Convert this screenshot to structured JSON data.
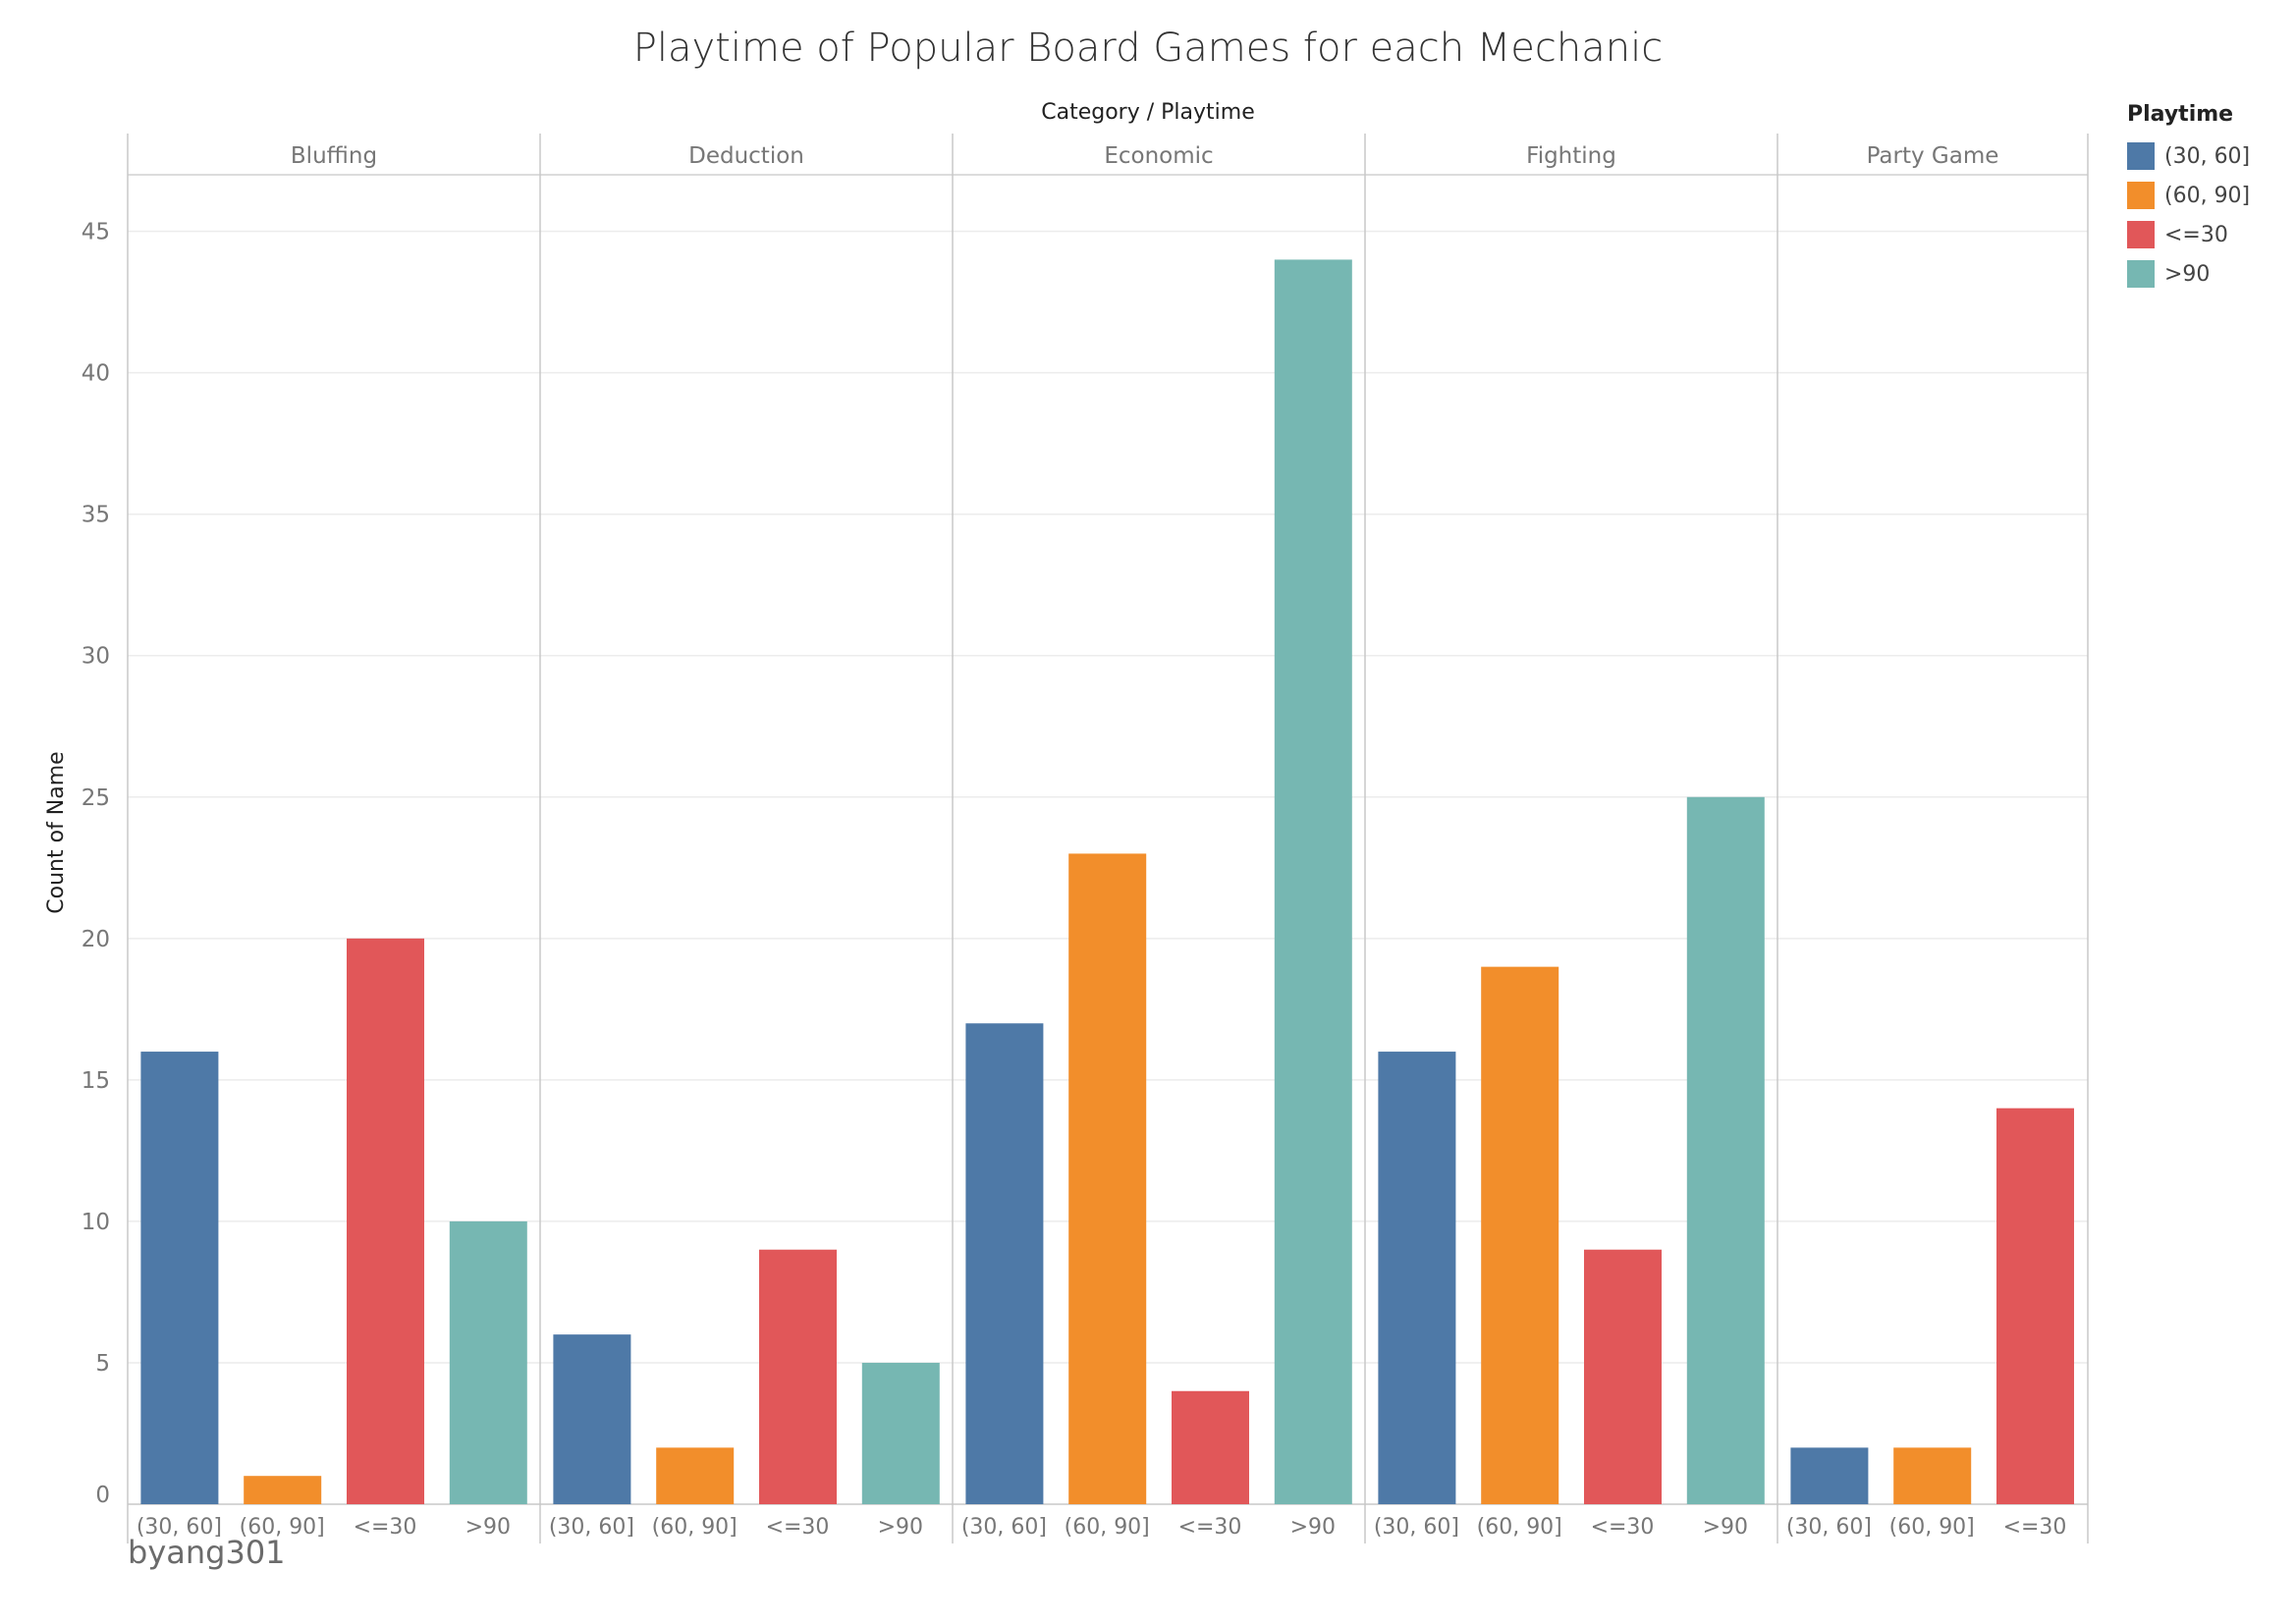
{
  "title": "Playtime of Popular Board Games for each Mechanic",
  "column_header": "Category / Playtime",
  "watermark": "byang301",
  "legend": {
    "title": "Playtime",
    "items": [
      {
        "label": "(30, 60]",
        "color": "#4e79a7"
      },
      {
        "label": "(60, 90]",
        "color": "#f28e2b"
      },
      {
        "label": "<=30",
        "color": "#e15759"
      },
      {
        "label": ">90",
        "color": "#76b7b2"
      }
    ]
  },
  "chart_data": {
    "type": "bar",
    "ylabel": "Count of Name",
    "ylim": [
      0,
      47
    ],
    "yticks": [
      0,
      5,
      10,
      15,
      20,
      25,
      30,
      35,
      40,
      45
    ],
    "grid": true,
    "legend_position": "right",
    "series_colors": {
      "(30, 60]": "#4e79a7",
      "(60, 90]": "#f28e2b",
      "<=30": "#e15759",
      ">90": "#76b7b2"
    },
    "groups": [
      {
        "category": "Bluffing",
        "bars": [
          {
            "label": "(30, 60]",
            "value": 16
          },
          {
            "label": "(60, 90]",
            "value": 1
          },
          {
            "label": "<=30",
            "value": 20
          },
          {
            "label": ">90",
            "value": 10
          }
        ]
      },
      {
        "category": "Deduction",
        "bars": [
          {
            "label": "(30, 60]",
            "value": 6
          },
          {
            "label": "(60, 90]",
            "value": 2
          },
          {
            "label": "<=30",
            "value": 9
          },
          {
            "label": ">90",
            "value": 5
          }
        ]
      },
      {
        "category": "Economic",
        "bars": [
          {
            "label": "(30, 60]",
            "value": 17
          },
          {
            "label": "(60, 90]",
            "value": 23
          },
          {
            "label": "<=30",
            "value": 4
          },
          {
            "label": ">90",
            "value": 44
          }
        ]
      },
      {
        "category": "Fighting",
        "bars": [
          {
            "label": "(30, 60]",
            "value": 16
          },
          {
            "label": "(60, 90]",
            "value": 19
          },
          {
            "label": "<=30",
            "value": 9
          },
          {
            "label": ">90",
            "value": 25
          }
        ]
      },
      {
        "category": "Party Game",
        "bars": [
          {
            "label": "(30, 60]",
            "value": 2
          },
          {
            "label": "(60, 90]",
            "value": 2
          },
          {
            "label": "<=30",
            "value": 14
          }
        ]
      }
    ]
  }
}
